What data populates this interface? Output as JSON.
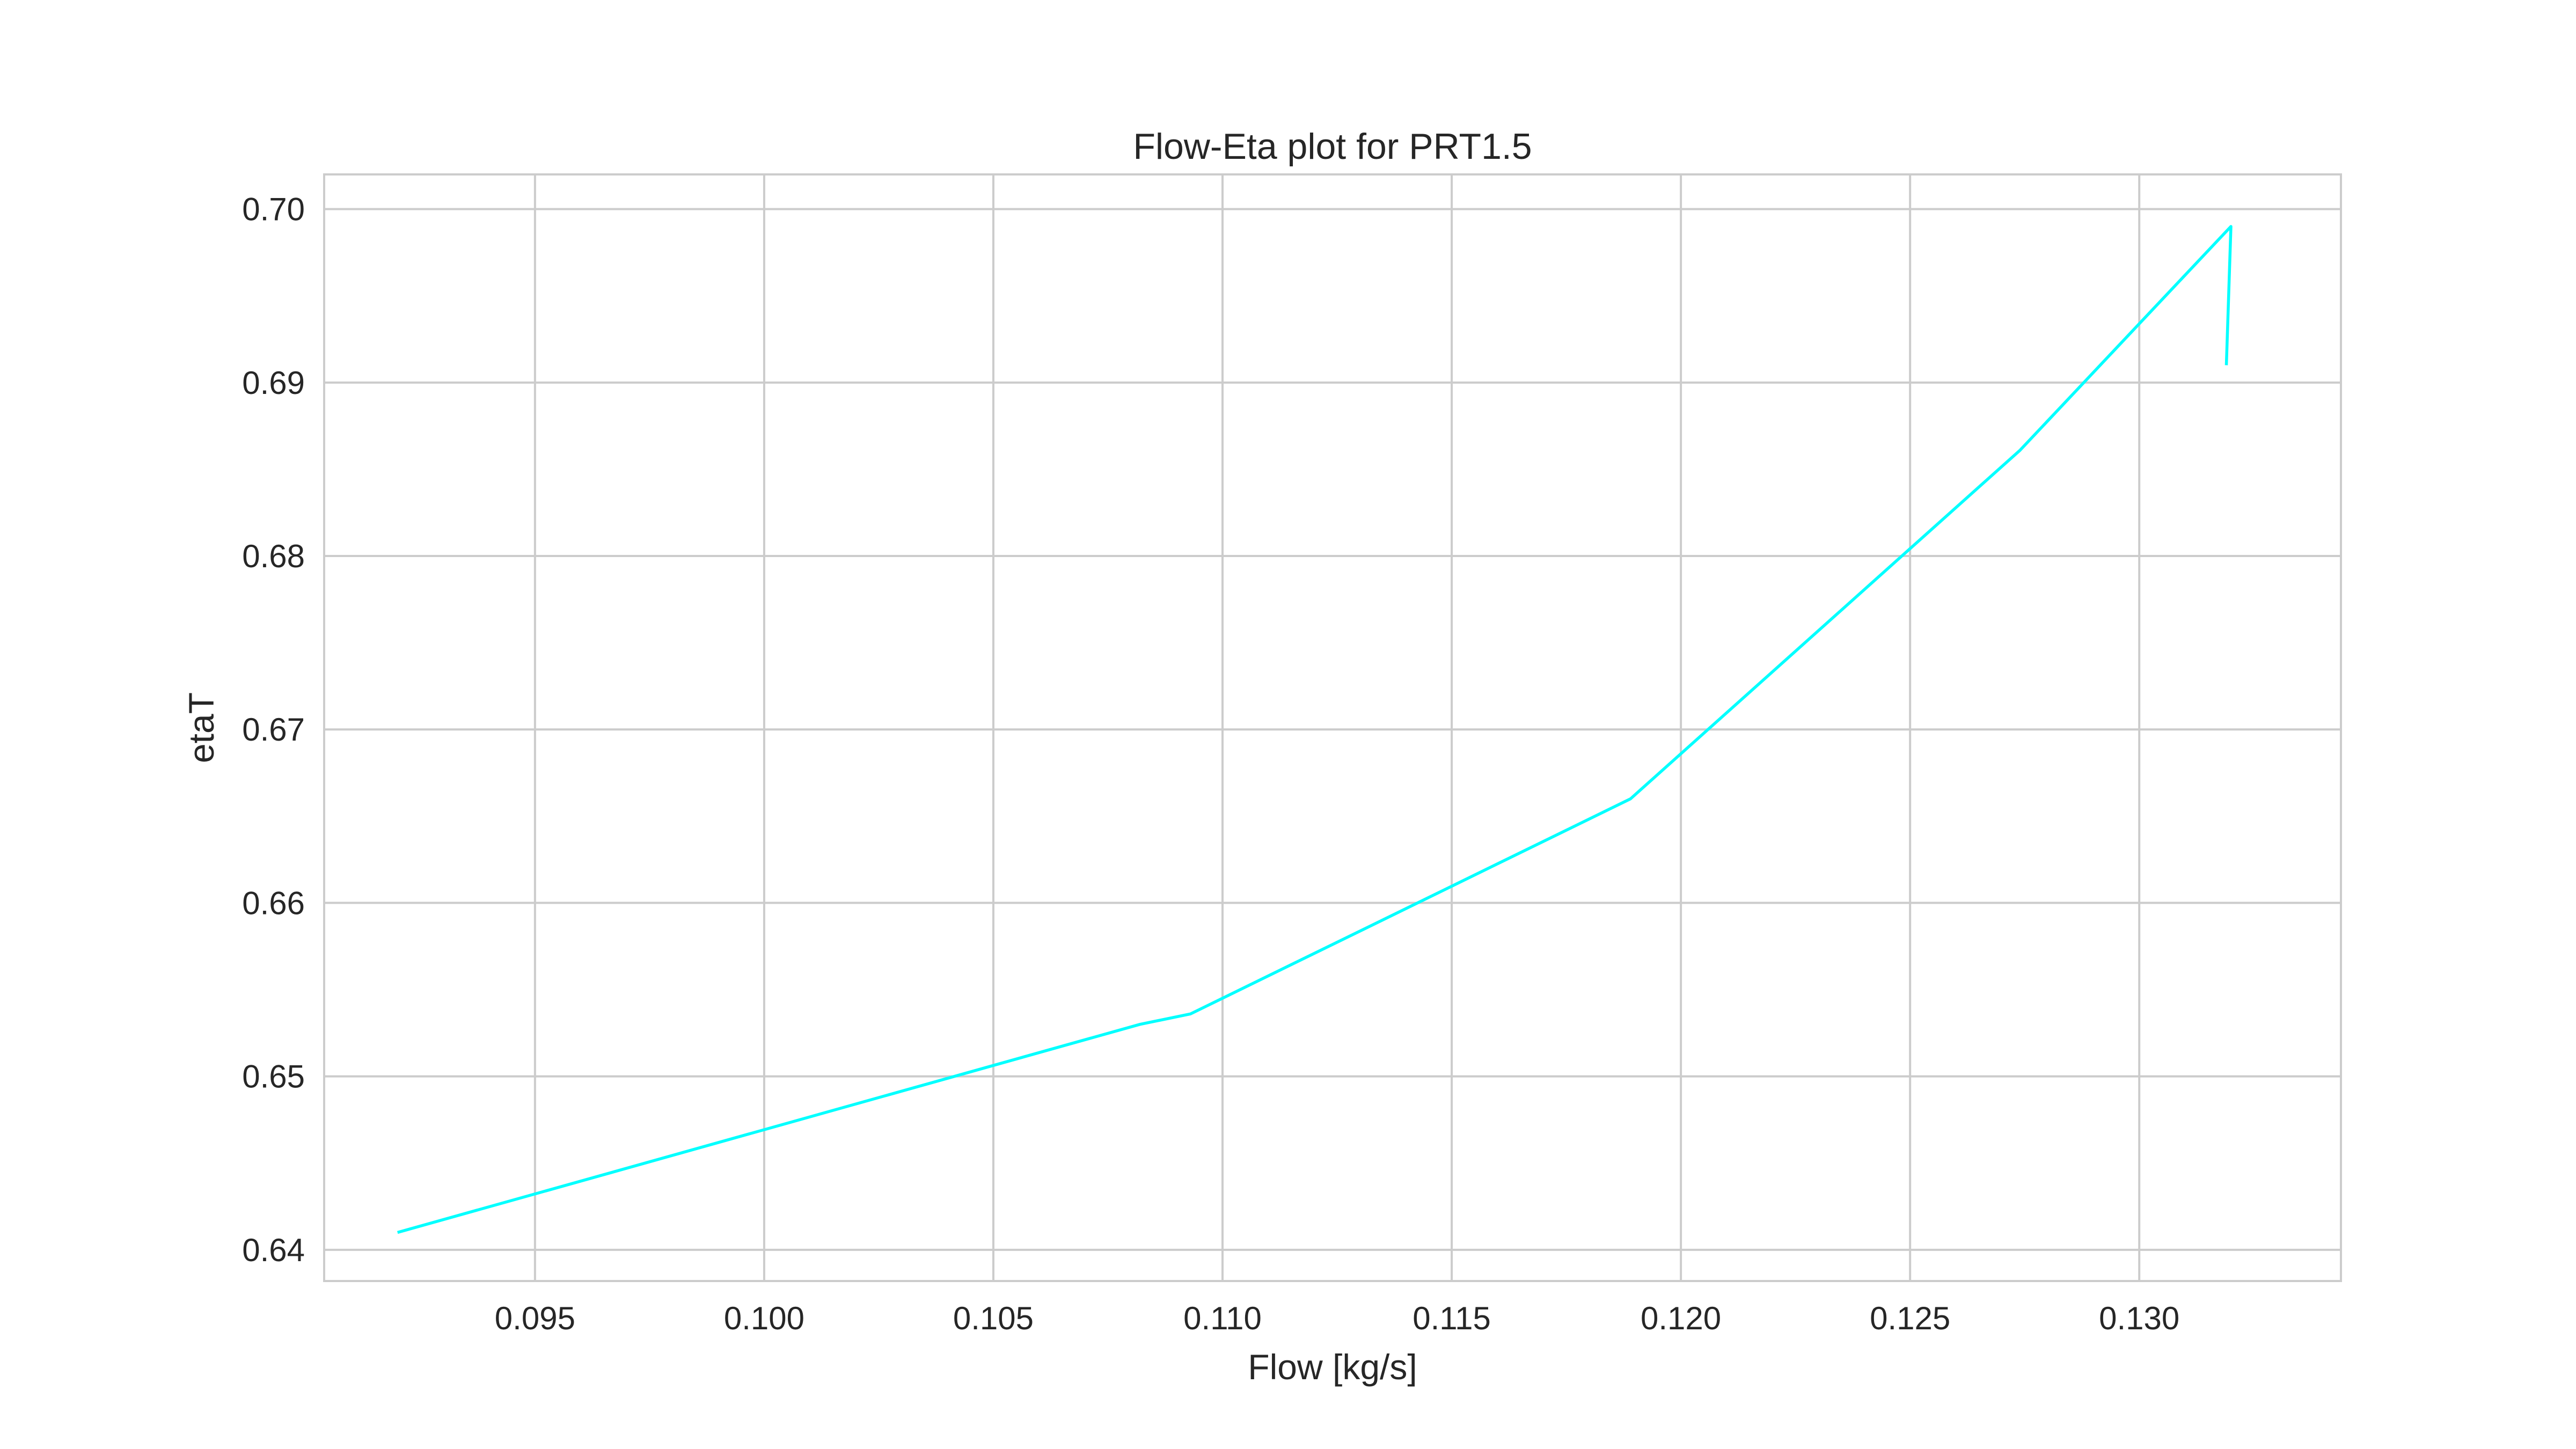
{
  "chart_data": {
    "type": "line",
    "title": "Flow-Eta plot for PRT1.5",
    "xlabel": "Flow [kg/s]",
    "ylabel": "etaT",
    "xlim": [
      0.0904,
      0.1344
    ],
    "ylim": [
      0.6382,
      0.702
    ],
    "xticks": [
      0.095,
      0.1,
      0.105,
      0.11,
      0.115,
      0.12,
      0.125,
      0.13
    ],
    "xtick_labels": [
      "0.095",
      "0.100",
      "0.105",
      "0.110",
      "0.115",
      "0.120",
      "0.125",
      "0.130"
    ],
    "yticks": [
      0.64,
      0.65,
      0.66,
      0.67,
      0.68,
      0.69,
      0.7
    ],
    "ytick_labels": [
      "0.64",
      "0.65",
      "0.66",
      "0.67",
      "0.68",
      "0.69",
      "0.70"
    ],
    "grid": true,
    "series": [
      {
        "color": "#00ffff",
        "x": [
          0.092,
          0.1082,
          0.1093,
          0.1189,
          0.1274,
          0.132,
          0.1319
        ],
        "y": [
          0.641,
          0.653,
          0.6536,
          0.666,
          0.6861,
          0.699,
          0.691
        ]
      }
    ]
  }
}
